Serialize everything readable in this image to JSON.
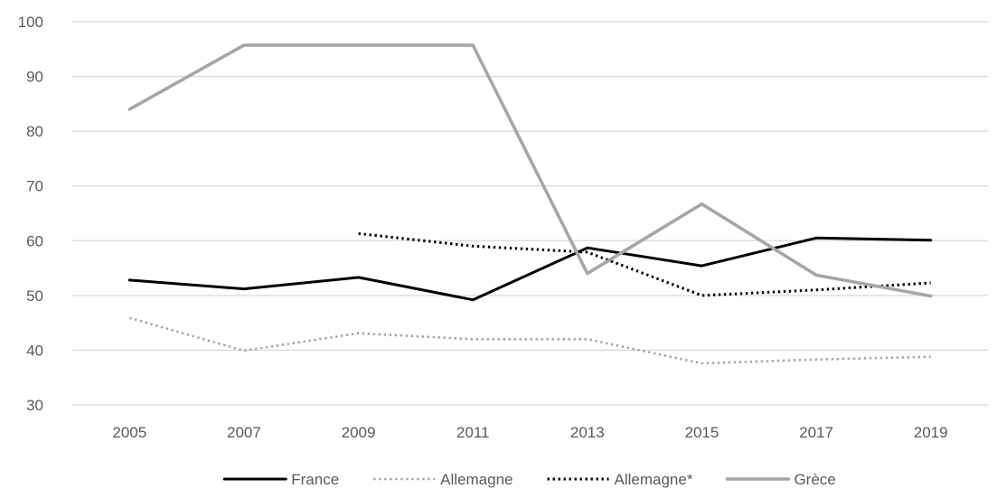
{
  "chart_data": {
    "type": "line",
    "title": "",
    "xlabel": "",
    "ylabel": "",
    "x": [
      "2005",
      "2007",
      "2009",
      "2011",
      "2013",
      "2015",
      "2017",
      "2019"
    ],
    "ylim": [
      30,
      100
    ],
    "yticks": [
      30,
      40,
      50,
      60,
      70,
      80,
      90,
      100
    ],
    "grid": true,
    "legend": "bottom",
    "series": [
      {
        "name": "France",
        "style": "solid",
        "color": "#000000",
        "values": [
          52.8,
          51.2,
          53.3,
          49.2,
          58.7,
          55.4,
          60.5,
          60.1
        ]
      },
      {
        "name": "Allemagne",
        "style": "dotted",
        "color": "#a6a6a6",
        "values": [
          45.9,
          39.9,
          43.1,
          42.0,
          42.0,
          37.6,
          38.3,
          38.8
        ]
      },
      {
        "name": "Allemagne*",
        "style": "dotted",
        "color": "#000000",
        "values": [
          null,
          null,
          61.3,
          59.0,
          57.9,
          50.0,
          51.0,
          52.3
        ]
      },
      {
        "name": "Grèce",
        "style": "solid",
        "color": "#a6a6a6",
        "values": [
          84.0,
          95.7,
          95.7,
          95.7,
          54.0,
          66.7,
          53.7,
          49.9
        ]
      }
    ]
  }
}
